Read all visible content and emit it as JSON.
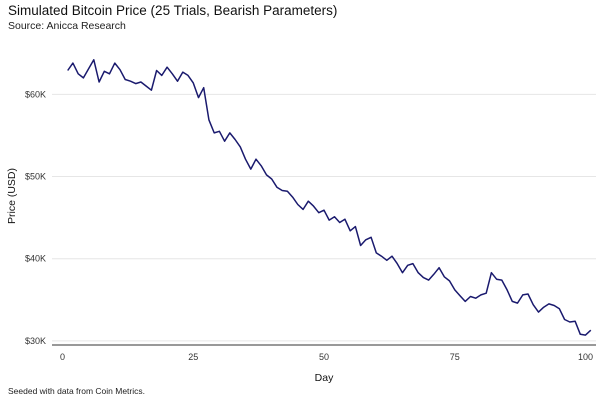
{
  "chart_data": {
    "type": "line",
    "title": "Simulated Bitcoin Price (25 Trials, Bearish Parameters)",
    "subtitle": "Source: Anicca Research",
    "caption": "Seeded with data from Coin Metrics.",
    "xlabel": "Day",
    "ylabel": "Price (USD)",
    "xlim": [
      -2,
      102
    ],
    "ylim": [
      29500,
      66000
    ],
    "x_ticks": [
      0,
      25,
      50,
      75,
      100
    ],
    "x_tick_labels": [
      "0",
      "25",
      "50",
      "75",
      "100"
    ],
    "y_ticks": [
      30000,
      40000,
      50000,
      60000
    ],
    "y_tick_labels": [
      "$30K",
      "$40K",
      "$50K",
      "$60K"
    ],
    "grid": "horizontal",
    "legend": "none",
    "line_color": "#1a1a6e",
    "series": [
      {
        "x": [
          1,
          2,
          3,
          4,
          5,
          6,
          7,
          8,
          9,
          10,
          11,
          12,
          13,
          14,
          15,
          16,
          17,
          18,
          19,
          20,
          21,
          22,
          23,
          24,
          25,
          26,
          27,
          28,
          29,
          30,
          31,
          32,
          33,
          34,
          35,
          36,
          37,
          38,
          39,
          40,
          41,
          42,
          43,
          44,
          45,
          46,
          47,
          48,
          49,
          50,
          51,
          52,
          53,
          54,
          55,
          56,
          57,
          58,
          59,
          60,
          61,
          62,
          63,
          64,
          65,
          66,
          67,
          68,
          69,
          70,
          71,
          72,
          73,
          74,
          75,
          76,
          77,
          78,
          79,
          80,
          81,
          82,
          83,
          84,
          85,
          86,
          87,
          88,
          89,
          90,
          91,
          92,
          93,
          94,
          95,
          96,
          97,
          98,
          99,
          100,
          101
        ],
        "values": [
          62900,
          63800,
          62500,
          62000,
          63100,
          64200,
          61500,
          62800,
          62500,
          63800,
          63000,
          61800,
          61600,
          61300,
          61500,
          61000,
          60500,
          62900,
          62300,
          63300,
          62500,
          61600,
          62700,
          62300,
          61400,
          59600,
          60800,
          56900,
          55300,
          55500,
          54300,
          55300,
          54500,
          53600,
          52100,
          50900,
          52100,
          51300,
          50200,
          49700,
          48700,
          48300,
          48200,
          47500,
          46600,
          46000,
          47000,
          46400,
          45600,
          45900,
          44700,
          45100,
          44400,
          44800,
          43400,
          43900,
          41600,
          42300,
          42600,
          40700,
          40300,
          39800,
          40300,
          39400,
          38300,
          39200,
          39400,
          38300,
          37700,
          37400,
          38100,
          38900,
          37800,
          37300,
          36200,
          35500,
          34800,
          35400,
          35200,
          35600,
          35800,
          38300,
          37500,
          37400,
          36200,
          34800,
          34600,
          35600,
          35700,
          34400,
          33500,
          34100,
          34500,
          34300,
          33900,
          32600,
          32300,
          32400,
          30800,
          30700,
          31300
        ]
      }
    ]
  }
}
